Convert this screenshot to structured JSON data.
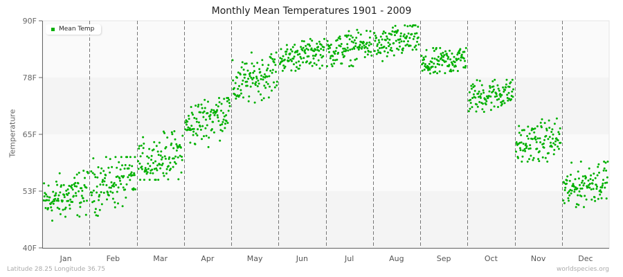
{
  "header": {
    "title": "Monthly Mean Temperatures 1901 - 2009"
  },
  "footer": {
    "location": "Latitude 28.25 Longitude 36.75",
    "source": "worldspecies.org"
  },
  "legend": {
    "label": "Mean Temp",
    "color": "#00b000"
  },
  "colors": {
    "point": "#00b000",
    "band_light": "#fafafa",
    "band_dark": "#f4f4f4",
    "divider": "#777777",
    "axis": "#666666"
  },
  "chart_data": {
    "type": "scatter",
    "title": "Monthly Mean Temperatures 1901 - 2009",
    "xlabel": "",
    "ylabel": "Temperature",
    "ylim": [
      40,
      90
    ],
    "yticks": [
      "40F",
      "53F",
      "65F",
      "78F",
      "90F"
    ],
    "ytick_values": [
      40,
      52.5,
      65,
      77.5,
      90
    ],
    "categories": [
      "Jan",
      "Feb",
      "Mar",
      "Apr",
      "May",
      "Jun",
      "Jul",
      "Aug",
      "Sep",
      "Oct",
      "Nov",
      "Dec"
    ],
    "years": [
      1901,
      2009
    ],
    "legend_position": "top-left",
    "grid": "alternating horizontal bands, dashed vertical month dividers",
    "series": [
      {
        "name": "Mean Temp",
        "note": "one point per year per month (109 years); values approximated as start/end trend mean and min/max spread",
        "months": [
          {
            "month": "Jan",
            "start_mean": 50.0,
            "end_mean": 52.5,
            "min": 46,
            "max": 57
          },
          {
            "month": "Feb",
            "start_mean": 53.5,
            "end_mean": 55.5,
            "min": 47,
            "max": 60
          },
          {
            "month": "Mar",
            "start_mean": 58.5,
            "end_mean": 61.0,
            "min": 55,
            "max": 66
          },
          {
            "month": "Apr",
            "start_mean": 66.5,
            "end_mean": 70.5,
            "min": 62,
            "max": 73
          },
          {
            "month": "May",
            "start_mean": 75.5,
            "end_mean": 79.0,
            "min": 72,
            "max": 83
          },
          {
            "month": "Jun",
            "start_mean": 81.5,
            "end_mean": 83.5,
            "min": 79,
            "max": 86
          },
          {
            "month": "Jul",
            "start_mean": 83.0,
            "end_mean": 85.0,
            "min": 80,
            "max": 88
          },
          {
            "month": "Aug",
            "start_mean": 84.0,
            "end_mean": 86.5,
            "min": 81,
            "max": 89
          },
          {
            "month": "Sep",
            "start_mean": 80.0,
            "end_mean": 82.0,
            "min": 77,
            "max": 84
          },
          {
            "month": "Oct",
            "start_mean": 73.0,
            "end_mean": 74.5,
            "min": 69,
            "max": 77
          },
          {
            "month": "Nov",
            "start_mean": 62.5,
            "end_mean": 64.0,
            "min": 59,
            "max": 69
          },
          {
            "month": "Dec",
            "start_mean": 52.5,
            "end_mean": 55.5,
            "min": 49,
            "max": 59
          }
        ]
      }
    ]
  }
}
